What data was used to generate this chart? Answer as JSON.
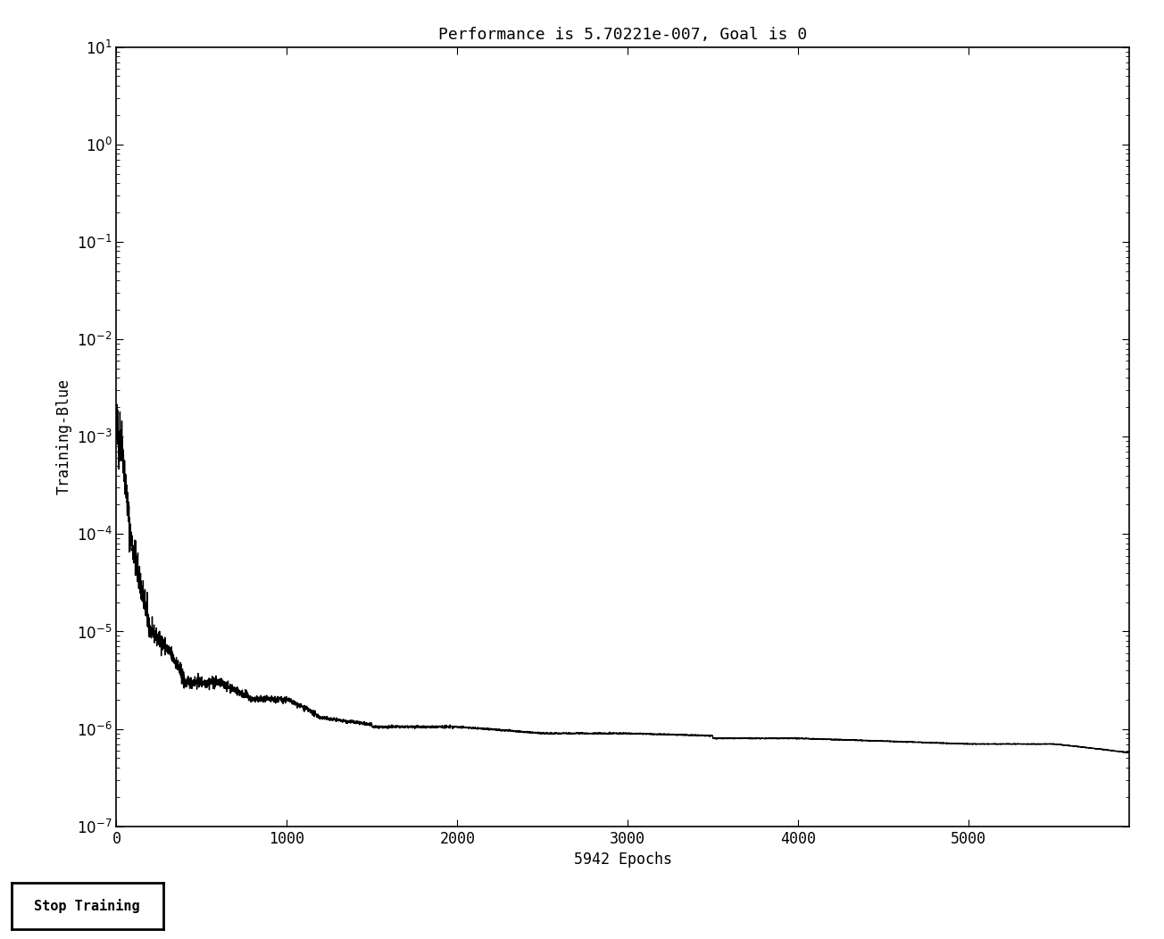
{
  "title": "Performance is 5.70221e-007, Goal is 0",
  "ylabel": "Training-Blue",
  "xlabel": "5942 Epochs",
  "xlim": [
    0,
    5942
  ],
  "y_ticks": [
    1e-07,
    1e-06,
    1e-05,
    0.0001,
    0.001,
    0.01,
    0.1,
    1.0,
    10.0
  ],
  "y_tick_labels": [
    "10^{-7}",
    "10^{-6}",
    "10^{-5}",
    "10^{-4}",
    "10^{-3}",
    "10^{-2}",
    "10^{-1}",
    "10^{0}",
    "10^{1}"
  ],
  "x_ticks": [
    0,
    1000,
    2000,
    3000,
    4000,
    5000
  ],
  "line_color": "#000000",
  "background_color": "#ffffff",
  "plot_bg_color": "#ffffff",
  "title_fontsize": 13,
  "label_fontsize": 12,
  "tick_fontsize": 12,
  "stop_button_label": "Stop Training",
  "final_value": 5.70221e-07,
  "total_epochs": 5942
}
